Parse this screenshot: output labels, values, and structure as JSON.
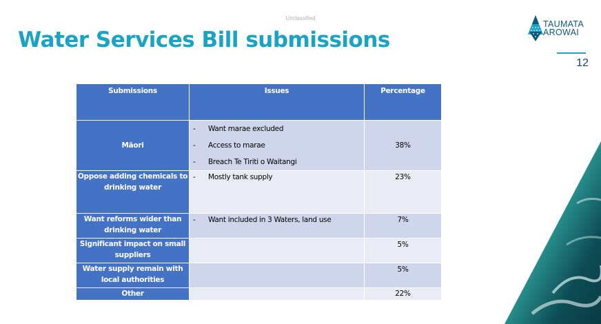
{
  "classification": "Unclassified",
  "title": "Water Services Bill submissions",
  "logo": {
    "line1": "TAUMATA",
    "line2": "AROWAI"
  },
  "page_number": "12",
  "table": {
    "headers": [
      "Submissions",
      "Issues",
      "Percentage"
    ],
    "rows": [
      {
        "submission": "Māori",
        "issues": [
          "Want marae excluded",
          "Access to marae",
          "Breach Te Tiriti o Waitangi"
        ],
        "percentage": "38%"
      },
      {
        "submission": "Oppose adding chemicals to drinking water",
        "issues": [
          "Mostly tank supply"
        ],
        "percentage": "23%"
      },
      {
        "submission": "Want reforms wider than drinking water",
        "issues": [
          "Want included in 3 Waters, land use"
        ],
        "percentage": "7%"
      },
      {
        "submission": "Significant impact on small suppliers",
        "issues": [],
        "percentage": "5%"
      },
      {
        "submission": "Water supply remain with local authorities",
        "issues": [],
        "percentage": "5%"
      },
      {
        "submission": "Other",
        "issues": [],
        "percentage": "22%"
      }
    ]
  },
  "colors": {
    "title": "#1aa3c2",
    "header_bg": "#4472c4",
    "row_dark": "#cfd5ea",
    "row_light": "#e9ebf5"
  }
}
